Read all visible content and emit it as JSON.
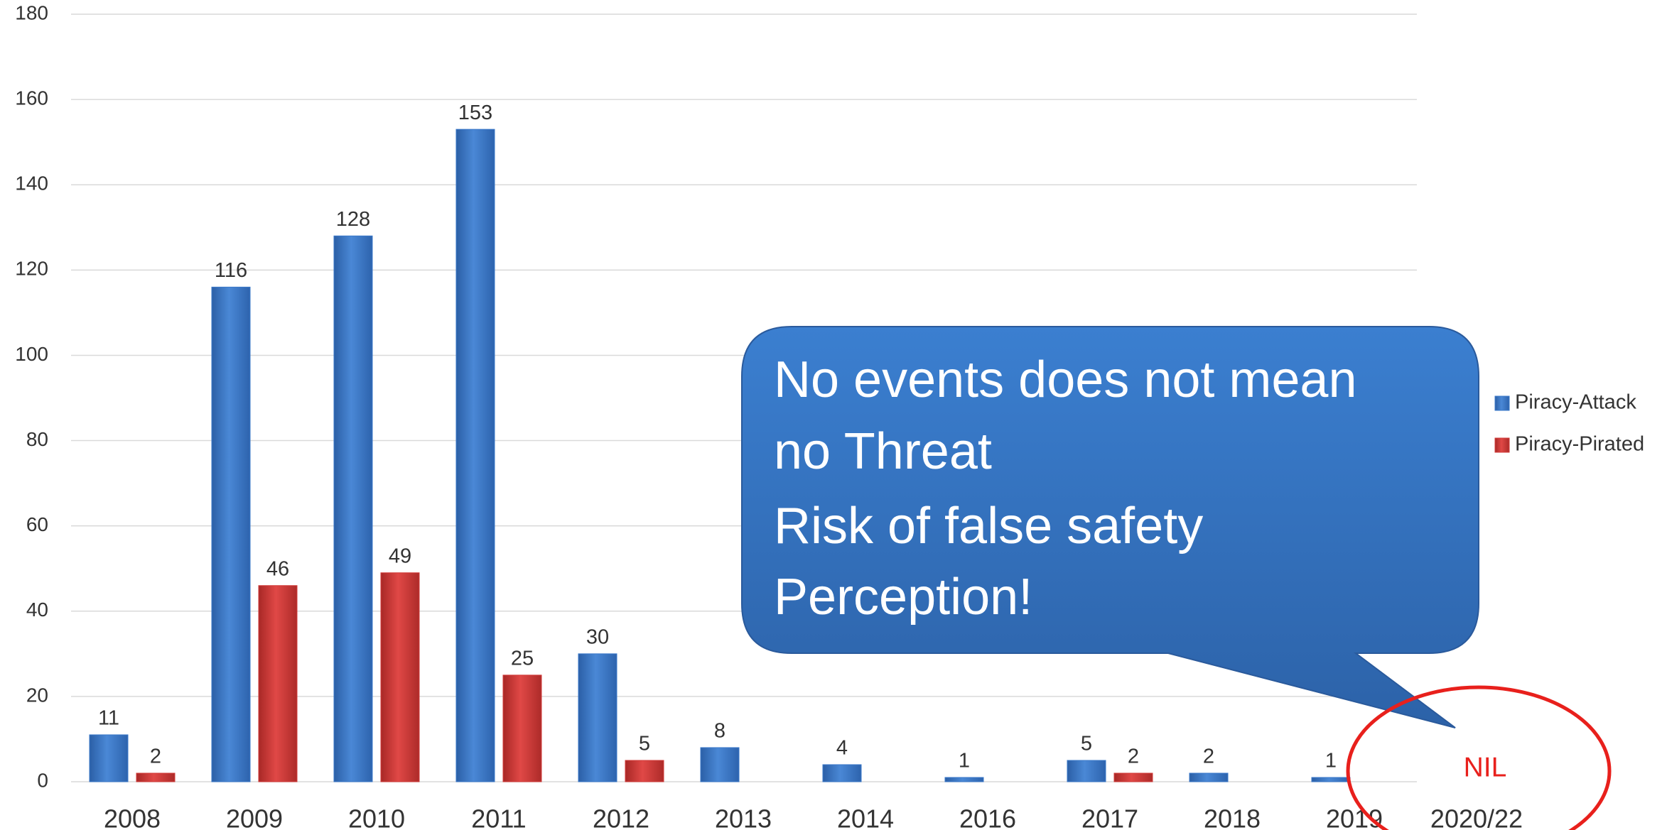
{
  "chart_data": {
    "type": "bar",
    "categories": [
      "2008",
      "2009",
      "2010",
      "2011",
      "2012",
      "2013",
      "2014",
      "2016",
      "2017",
      "2018",
      "2019",
      "2020/22"
    ],
    "series": [
      {
        "name": "Piracy-Attack",
        "color": "#3a78c9",
        "values": [
          11,
          116,
          128,
          153,
          30,
          8,
          4,
          1,
          5,
          2,
          1,
          null
        ]
      },
      {
        "name": "Piracy-Pirated",
        "color": "#d13a38",
        "values": [
          2,
          46,
          49,
          25,
          5,
          null,
          null,
          null,
          2,
          null,
          null,
          null
        ]
      }
    ],
    "ylim": [
      0,
      180
    ],
    "yticks": [
      0,
      20,
      40,
      60,
      80,
      100,
      120,
      140,
      160,
      180
    ],
    "grid": true,
    "legend": "right",
    "annotations": {
      "callout": [
        "No events does not mean",
        "no Threat",
        "Risk of false safety",
        "Perception!"
      ],
      "nil": "NIL"
    }
  }
}
